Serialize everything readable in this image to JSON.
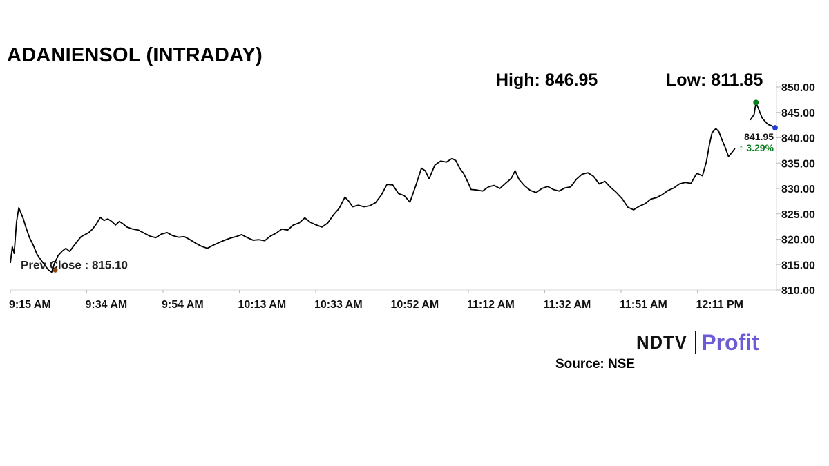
{
  "title": "ADANIENSOL (INTRADAY)",
  "high_label": "High: 846.95",
  "low_label": "Low: 811.85",
  "source": "Source: NSE",
  "brand": {
    "ndtv": "NDTV",
    "profit": "Profit"
  },
  "colors": {
    "line": "#000000",
    "prev_close_line": "#8b1a1a",
    "high_dot": "#0a7d1e",
    "last_dot": "#1f3fd1",
    "change_text": "#0a7d1e",
    "brand_profit": "#6b5bd6"
  },
  "chart_data": {
    "type": "line",
    "title": "ADANIENSOL (INTRADAY)",
    "x_ticks": [
      "9:15 AM",
      "9:34 AM",
      "9:54 AM",
      "10:13 AM",
      "10:33 AM",
      "10:52 AM",
      "11:12 AM",
      "11:32 AM",
      "11:51 AM",
      "12:11 PM"
    ],
    "y_ticks": [
      "850.00",
      "845.00",
      "840.00",
      "835.00",
      "830.00",
      "825.00",
      "820.00",
      "815.00",
      "810.00"
    ],
    "ylim": [
      810,
      850
    ],
    "xlim_minutes": [
      0,
      200
    ],
    "x_unit": "minutes after 9:15 AM",
    "prev_close": {
      "label": "Prev Close : 815.10",
      "value": 815.1
    },
    "high_point": {
      "minute": 195,
      "value": 846.95
    },
    "last": {
      "label": "841.95",
      "change": "↑ 3.29%",
      "minute": 200,
      "value": 841.95
    },
    "series": [
      {
        "values": [
          [
            0,
            815.3
          ],
          [
            0.5,
            818.5
          ],
          [
            1,
            817.2
          ],
          [
            1.6,
            823.4
          ],
          [
            2.2,
            826.2
          ],
          [
            2.8,
            825.1
          ],
          [
            3.4,
            824.0
          ],
          [
            4.0,
            822.5
          ],
          [
            5.0,
            820.3
          ],
          [
            6.0,
            818.8
          ],
          [
            7.0,
            817.0
          ],
          [
            8.0,
            815.9
          ],
          [
            9.0,
            814.9
          ],
          [
            10.0,
            813.9
          ],
          [
            10.8,
            813.5
          ],
          [
            11.5,
            815.2
          ],
          [
            12.5,
            816.8
          ],
          [
            13.5,
            817.6
          ],
          [
            14.5,
            818.2
          ],
          [
            15.5,
            817.6
          ],
          [
            16.5,
            818.6
          ],
          [
            17.5,
            819.6
          ],
          [
            18.5,
            820.5
          ],
          [
            19.5,
            820.9
          ],
          [
            20.5,
            821.3
          ],
          [
            21.5,
            822.0
          ],
          [
            22.5,
            823.0
          ],
          [
            23.5,
            824.3
          ],
          [
            24.5,
            823.7
          ],
          [
            25.5,
            824.0
          ],
          [
            26.5,
            823.5
          ],
          [
            27.5,
            822.8
          ],
          [
            28.5,
            823.5
          ],
          [
            29.5,
            823.0
          ],
          [
            30.5,
            822.4
          ],
          [
            32,
            822.0
          ],
          [
            33.5,
            821.8
          ],
          [
            35,
            821.2
          ],
          [
            36.5,
            820.6
          ],
          [
            38,
            820.3
          ],
          [
            39.5,
            821.0
          ],
          [
            41,
            821.3
          ],
          [
            42.5,
            820.7
          ],
          [
            44,
            820.4
          ],
          [
            45.5,
            820.5
          ],
          [
            47,
            819.9
          ],
          [
            48.5,
            819.2
          ],
          [
            50,
            818.6
          ],
          [
            51.5,
            818.2
          ],
          [
            53,
            818.8
          ],
          [
            54.5,
            819.3
          ],
          [
            56,
            819.8
          ],
          [
            57.5,
            820.2
          ],
          [
            59,
            820.5
          ],
          [
            60.5,
            820.9
          ],
          [
            62,
            820.3
          ],
          [
            63.5,
            819.8
          ],
          [
            65,
            819.9
          ],
          [
            66.5,
            819.7
          ],
          [
            68,
            820.6
          ],
          [
            69.5,
            821.2
          ],
          [
            71,
            822.0
          ],
          [
            72.5,
            821.8
          ],
          [
            74,
            822.8
          ],
          [
            75.5,
            823.2
          ],
          [
            77,
            824.2
          ],
          [
            78.5,
            823.3
          ],
          [
            80,
            822.8
          ],
          [
            81.5,
            822.4
          ],
          [
            83,
            823.2
          ],
          [
            84.5,
            824.8
          ],
          [
            86,
            826.1
          ],
          [
            87.5,
            828.3
          ],
          [
            88.5,
            827.5
          ],
          [
            89.5,
            826.4
          ],
          [
            91,
            826.7
          ],
          [
            92.5,
            826.4
          ],
          [
            94,
            826.6
          ],
          [
            95.5,
            827.2
          ],
          [
            97,
            828.7
          ],
          [
            98.5,
            830.8
          ],
          [
            100,
            830.7
          ],
          [
            101.5,
            829.0
          ],
          [
            103,
            828.6
          ],
          [
            104.5,
            827.3
          ],
          [
            106,
            830.5
          ],
          [
            107.5,
            834.0
          ],
          [
            108.5,
            833.5
          ],
          [
            109.5,
            831.9
          ],
          [
            111,
            834.6
          ],
          [
            112.5,
            835.4
          ],
          [
            114,
            835.2
          ],
          [
            115.5,
            835.9
          ],
          [
            116.5,
            835.5
          ],
          [
            117.5,
            834.0
          ],
          [
            118.5,
            833.0
          ],
          [
            119.5,
            831.5
          ],
          [
            120.5,
            829.8
          ],
          [
            122,
            829.7
          ],
          [
            123.5,
            829.5
          ],
          [
            125,
            830.3
          ],
          [
            126.5,
            830.6
          ],
          [
            128,
            830.0
          ],
          [
            129.5,
            831.0
          ],
          [
            131,
            832.0
          ],
          [
            132,
            833.5
          ],
          [
            133,
            831.8
          ],
          [
            134.5,
            830.5
          ],
          [
            136,
            829.6
          ],
          [
            137.5,
            829.2
          ],
          [
            139,
            830.0
          ],
          [
            140.5,
            830.4
          ],
          [
            142,
            829.8
          ],
          [
            143.5,
            829.5
          ],
          [
            145,
            830.1
          ],
          [
            146.5,
            830.3
          ],
          [
            148,
            831.8
          ],
          [
            149.5,
            832.8
          ],
          [
            151,
            833.1
          ],
          [
            152.5,
            832.4
          ],
          [
            154,
            830.9
          ],
          [
            155.5,
            831.4
          ],
          [
            157,
            830.2
          ],
          [
            158.5,
            829.2
          ],
          [
            160,
            828.0
          ],
          [
            161.5,
            826.3
          ],
          [
            163,
            825.8
          ],
          [
            164.5,
            826.5
          ],
          [
            166,
            827.0
          ],
          [
            167.5,
            827.9
          ],
          [
            169,
            828.2
          ],
          [
            170.5,
            828.8
          ],
          [
            172,
            829.6
          ],
          [
            173.5,
            830.1
          ],
          [
            175,
            830.9
          ],
          [
            176.5,
            831.2
          ],
          [
            178,
            831.0
          ],
          [
            179.5,
            833.0
          ],
          [
            181,
            832.5
          ],
          [
            182,
            835.2
          ],
          [
            182.8,
            838.6
          ],
          [
            183.5,
            841.0
          ],
          [
            184.5,
            841.8
          ],
          [
            185.3,
            841.2
          ],
          [
            186,
            839.8
          ],
          [
            187,
            838.0
          ],
          [
            187.8,
            836.3
          ],
          [
            188.5,
            836.9
          ],
          [
            189.5,
            837.9
          ],
          null,
          [
            193.5,
            843.5
          ],
          [
            194.5,
            844.6
          ],
          [
            195,
            846.95
          ],
          [
            195.8,
            845.4
          ],
          [
            196.6,
            843.9
          ],
          [
            197.4,
            843.2
          ],
          [
            198.2,
            842.6
          ],
          [
            199.0,
            842.4
          ],
          [
            200,
            841.95
          ]
        ]
      }
    ]
  }
}
